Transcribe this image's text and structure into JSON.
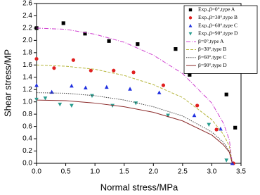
{
  "chart_data": {
    "type": "scatter",
    "x_label": "Normal stress/MPa",
    "y_label": "Shear stress/MP",
    "xlim": [
      0,
      3.5
    ],
    "ylim": [
      0,
      2.6
    ],
    "xticks": [
      {
        "value": 0,
        "label": "0.0"
      },
      0.5,
      {
        "value": 1,
        "label": "1.0"
      },
      1.5,
      {
        "value": 2,
        "label": "2.0"
      },
      2.5,
      {
        "value": 3,
        "label": "3.0"
      },
      3.5
    ],
    "yticks": [
      {
        "value": 0,
        "label": "0.0"
      },
      0.2,
      0.4,
      0.6,
      0.8,
      {
        "value": 1,
        "label": "1.0"
      },
      1.2,
      1.4,
      1.6,
      1.8,
      {
        "value": 2,
        "label": "2.0"
      },
      2.2,
      2.4,
      2.6
    ],
    "legend": "top-right",
    "series": [
      {
        "name": "Exp.,β=0°,type A",
        "kind": "scatter",
        "marker": "square",
        "color": "#000000",
        "x": [
          0.0,
          0.46,
          0.83,
          1.24,
          1.73,
          2.38,
          2.62,
          3.25,
          3.4
        ],
        "values": [
          2.2,
          2.28,
          2.11,
          1.99,
          1.94,
          1.86,
          1.44,
          1.12,
          0.58
        ]
      },
      {
        "name": "Exp.,β=30°,type B",
        "kind": "scatter",
        "marker": "circle",
        "color": "#e02020",
        "x": [
          0.0,
          0.3,
          0.63,
          0.93,
          1.32,
          1.66,
          2.17,
          2.75,
          3.08,
          3.37
        ],
        "values": [
          1.7,
          1.55,
          1.68,
          1.51,
          1.51,
          1.48,
          1.27,
          0.94,
          0.55,
          0.0
        ]
      },
      {
        "name": "Exp.,β=60°,type C",
        "kind": "scatter",
        "marker": "triangle",
        "color": "#2030e0",
        "x": [
          0.0,
          0.26,
          0.6,
          0.84,
          1.2,
          1.6,
          2.1,
          2.7,
          3.15,
          3.35
        ],
        "values": [
          1.27,
          1.16,
          1.26,
          1.23,
          1.24,
          1.21,
          1.15,
          0.78,
          0.56,
          0.0
        ]
      },
      {
        "name": "Exp.,β=90°,type D",
        "kind": "scatter",
        "marker": "triangle-down",
        "color": "#2a9d8f",
        "x": [
          0.0,
          0.15,
          0.4,
          0.6,
          0.95,
          1.3,
          1.7,
          2.25,
          2.95,
          3.25
        ],
        "values": [
          1.04,
          1.06,
          0.96,
          0.94,
          1.1,
          0.94,
          0.98,
          0.78,
          0.63,
          0.05
        ]
      },
      {
        "name": "β=0°,type A",
        "kind": "line",
        "dash": "6,2,1,2",
        "color": "#d040d0",
        "x": [
          0,
          0.5,
          1,
          1.5,
          2,
          2.5,
          3,
          3.2,
          3.3,
          3.35
        ],
        "values": [
          2.2,
          2.18,
          2.1,
          1.97,
          1.76,
          1.46,
          0.98,
          0.65,
          0.38,
          0
        ]
      },
      {
        "name": "β=30°,type B",
        "kind": "line",
        "dash": "4,2",
        "color": "#b5b53a",
        "x": [
          0,
          0.5,
          1,
          1.5,
          2,
          2.5,
          3,
          3.2,
          3.3,
          3.35
        ],
        "values": [
          1.6,
          1.58,
          1.53,
          1.43,
          1.28,
          1.07,
          0.71,
          0.47,
          0.28,
          0
        ]
      },
      {
        "name": "β=60°,type C",
        "kind": "line",
        "dash": "1.5,1.5",
        "color": "#404040",
        "x": [
          0,
          0.5,
          1,
          1.5,
          2,
          2.5,
          3,
          3.2,
          3.3,
          3.35
        ],
        "values": [
          1.15,
          1.14,
          1.1,
          1.03,
          0.92,
          0.77,
          0.51,
          0.34,
          0.2,
          0
        ]
      },
      {
        "name": "β=90°,type D",
        "kind": "line",
        "dash": "none",
        "color": "#8b2a2a",
        "x": [
          0,
          0.5,
          1,
          1.5,
          2,
          2.5,
          3,
          3.2,
          3.3,
          3.35
        ],
        "values": [
          1.03,
          1.02,
          0.98,
          0.92,
          0.83,
          0.69,
          0.46,
          0.3,
          0.18,
          0
        ]
      }
    ]
  }
}
